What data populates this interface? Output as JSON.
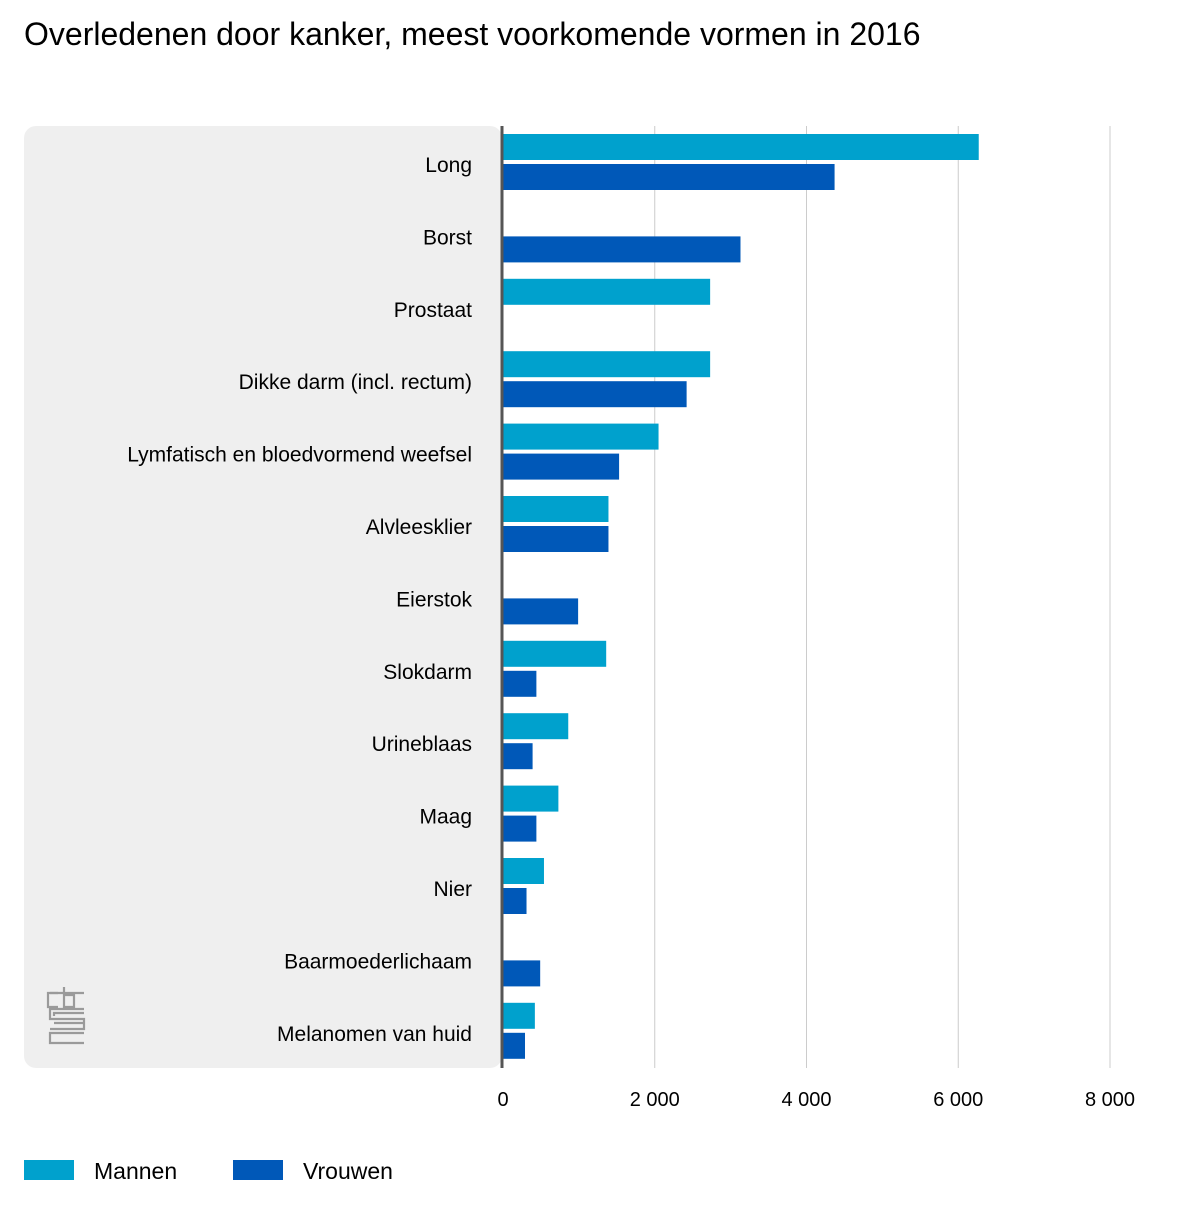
{
  "chart_data": {
    "type": "bar",
    "orientation": "horizontal",
    "title": "Overledenen door kanker, meest voorkomende vormen in 2016",
    "categories": [
      "Long",
      "Borst",
      "Prostaat",
      "Dikke darm (incl. rectum)",
      "Lymfatisch en bloedvormend weefsel",
      "Alvleesklier",
      "Eierstok",
      "Slokdarm",
      "Urineblaas",
      "Maag",
      "Nier",
      "Baarmoederlichaam",
      "Melanomen van huid"
    ],
    "series": [
      {
        "name": "Mannen",
        "color": "#00a1cd",
        "values": [
          6270,
          null,
          2730,
          2730,
          2050,
          1390,
          null,
          1360,
          860,
          730,
          540,
          null,
          420
        ]
      },
      {
        "name": "Vrouwen",
        "color": "#0058b8",
        "values": [
          4370,
          3130,
          null,
          2420,
          1530,
          1390,
          990,
          440,
          390,
          440,
          310,
          490,
          290
        ]
      }
    ],
    "xlim": [
      0,
      8000
    ],
    "xticks": [
      0,
      2000,
      4000,
      6000,
      8000
    ],
    "xtick_labels": [
      "0",
      "2 000",
      "4 000",
      "6 000",
      "8 000"
    ],
    "grid": "vertical",
    "legend": "bottom-left",
    "logo": "cbs-logo"
  }
}
